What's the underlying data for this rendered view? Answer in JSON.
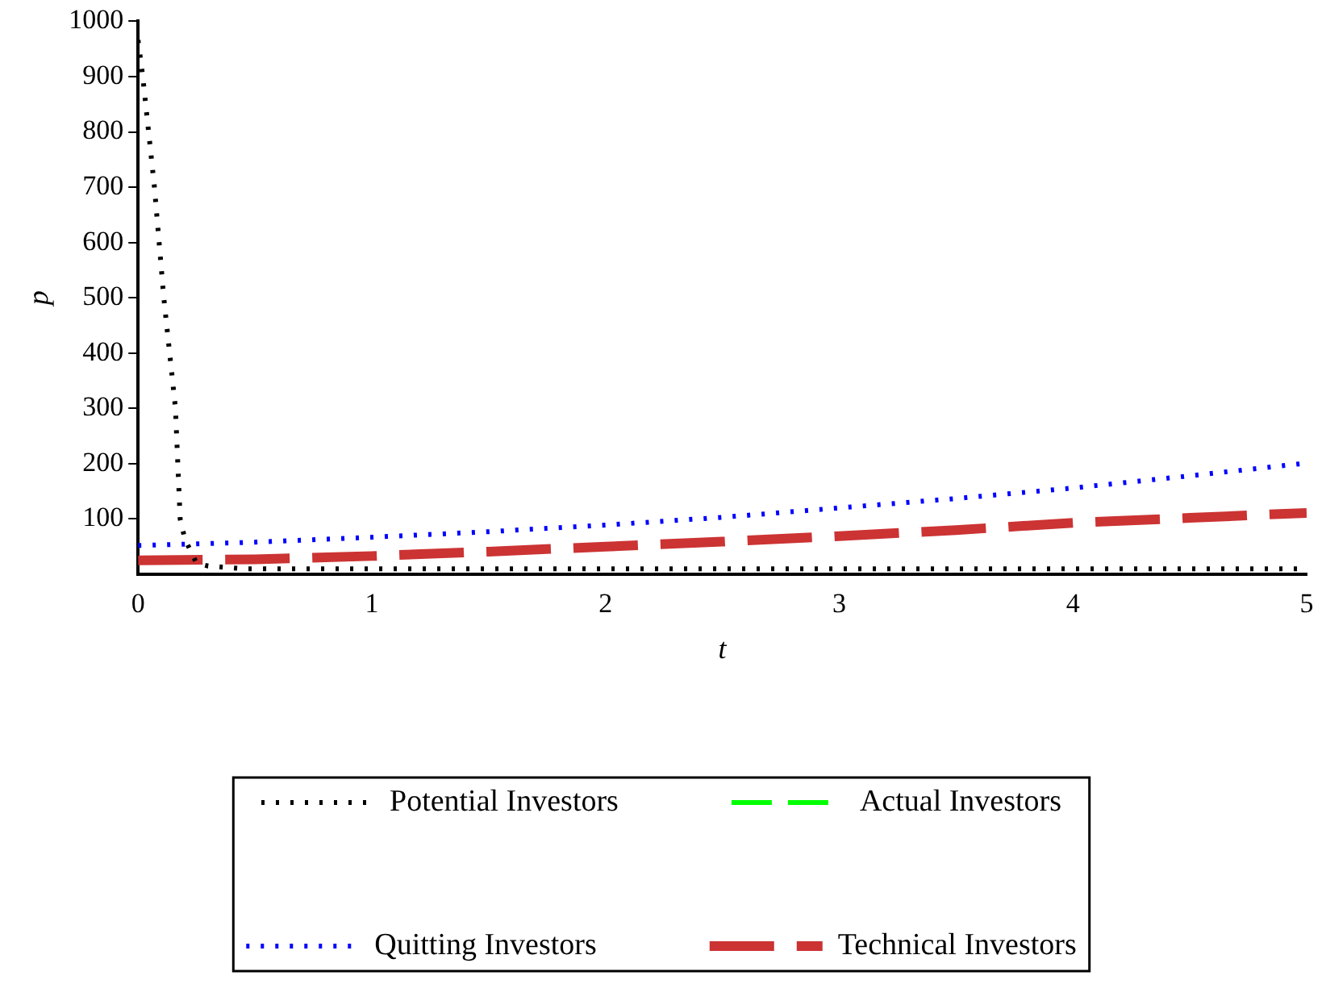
{
  "chart_data": {
    "type": "line",
    "xlabel": "t",
    "ylabel": "p",
    "xlim": [
      0,
      5
    ],
    "ylim": [
      0,
      1000
    ],
    "xticks": [
      0,
      1,
      2,
      3,
      4,
      5
    ],
    "yticks": [
      100,
      200,
      300,
      400,
      500,
      600,
      700,
      800,
      900,
      1000
    ],
    "grid": false,
    "legend": "bottom",
    "marker": "none",
    "series": [
      {
        "name": "Potential Investors",
        "color": "#000000",
        "line_style": "dotted",
        "x": [
          0,
          0.02,
          0.07,
          0.11,
          0.16,
          0.18,
          0.2,
          0.25,
          0.3,
          0.45,
          1,
          2,
          3,
          4,
          5
        ],
        "values": [
          966,
          900,
          700,
          500,
          300,
          100,
          64,
          20,
          15,
          10,
          10,
          10,
          10,
          10,
          10
        ]
      },
      {
        "name": "Actual Investors",
        "color": "#00ff00",
        "line_style": "dashed"
      },
      {
        "name": "Quitting Investors",
        "color": "#0000ff",
        "line_style": "dotted",
        "x": [
          0,
          0.5,
          1,
          1.5,
          2,
          2.5,
          3,
          3.5,
          4,
          4.5,
          5
        ],
        "values": [
          52,
          58,
          67,
          77,
          89,
          103,
          120,
          137,
          156,
          178,
          201
        ]
      },
      {
        "name": "Technical Investors",
        "color": "#cc3333",
        "line_style": "dashed",
        "x": [
          0,
          0.5,
          1,
          1.5,
          2,
          2.5,
          3,
          3.5,
          4,
          4.5,
          5
        ],
        "values": [
          25,
          27,
          33,
          41,
          50,
          59,
          69,
          80,
          93,
          102,
          111
        ]
      }
    ]
  }
}
